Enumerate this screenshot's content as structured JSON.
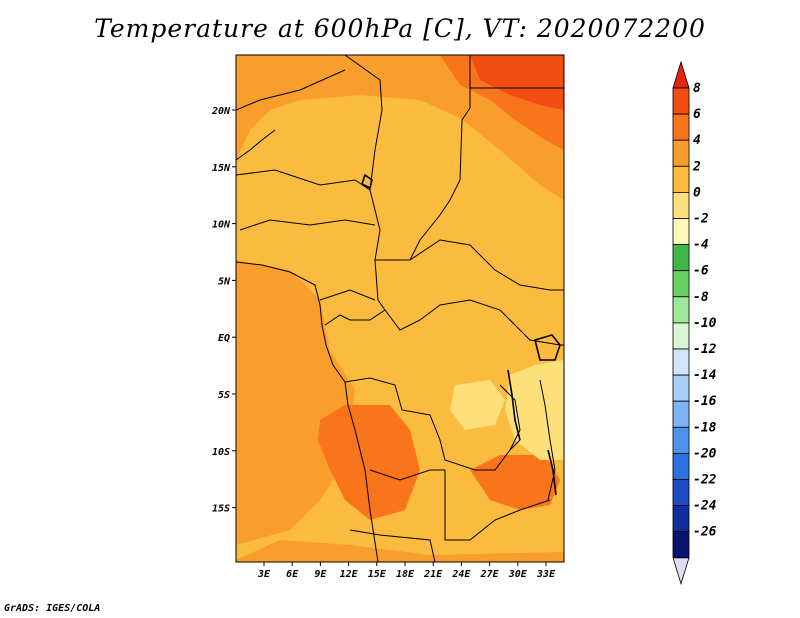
{
  "title": "Temperature at 600hPa [C], VT: 2020072200",
  "credit": "GrADS: IGES/COLA",
  "map": {
    "lat_labels": [
      "20N",
      "15N",
      "10N",
      "5N",
      "EQ",
      "5S",
      "10S",
      "15S"
    ],
    "lon_labels": [
      "3E",
      "6E",
      "9E",
      "12E",
      "15E",
      "18E",
      "21E",
      "24E",
      "27E",
      "30E",
      "33E"
    ],
    "lon_range": [
      0,
      35
    ],
    "lat_range": [
      -20,
      24.5
    ]
  },
  "colorbar": {
    "labels": [
      "8",
      "6",
      "4",
      "2",
      "0",
      "-2",
      "-4",
      "-6",
      "-8",
      "-10",
      "-12",
      "-14",
      "-16",
      "-18",
      "-20",
      "-22",
      "-24",
      "-26"
    ],
    "colors": [
      "#e8210c",
      "#f24d12",
      "#f9751c",
      "#f99d2c",
      "#fbbb3f",
      "#fde07a",
      "#fcf6b8",
      "#3fb846",
      "#69d062",
      "#9fe89a",
      "#d6f6d4",
      "#cfe6fb",
      "#a6d0f8",
      "#7bb3f3",
      "#4f92ec",
      "#2c70e1",
      "#1a4dc6",
      "#0f2e9e",
      "#0a136e",
      "#dcdcf2"
    ]
  }
}
